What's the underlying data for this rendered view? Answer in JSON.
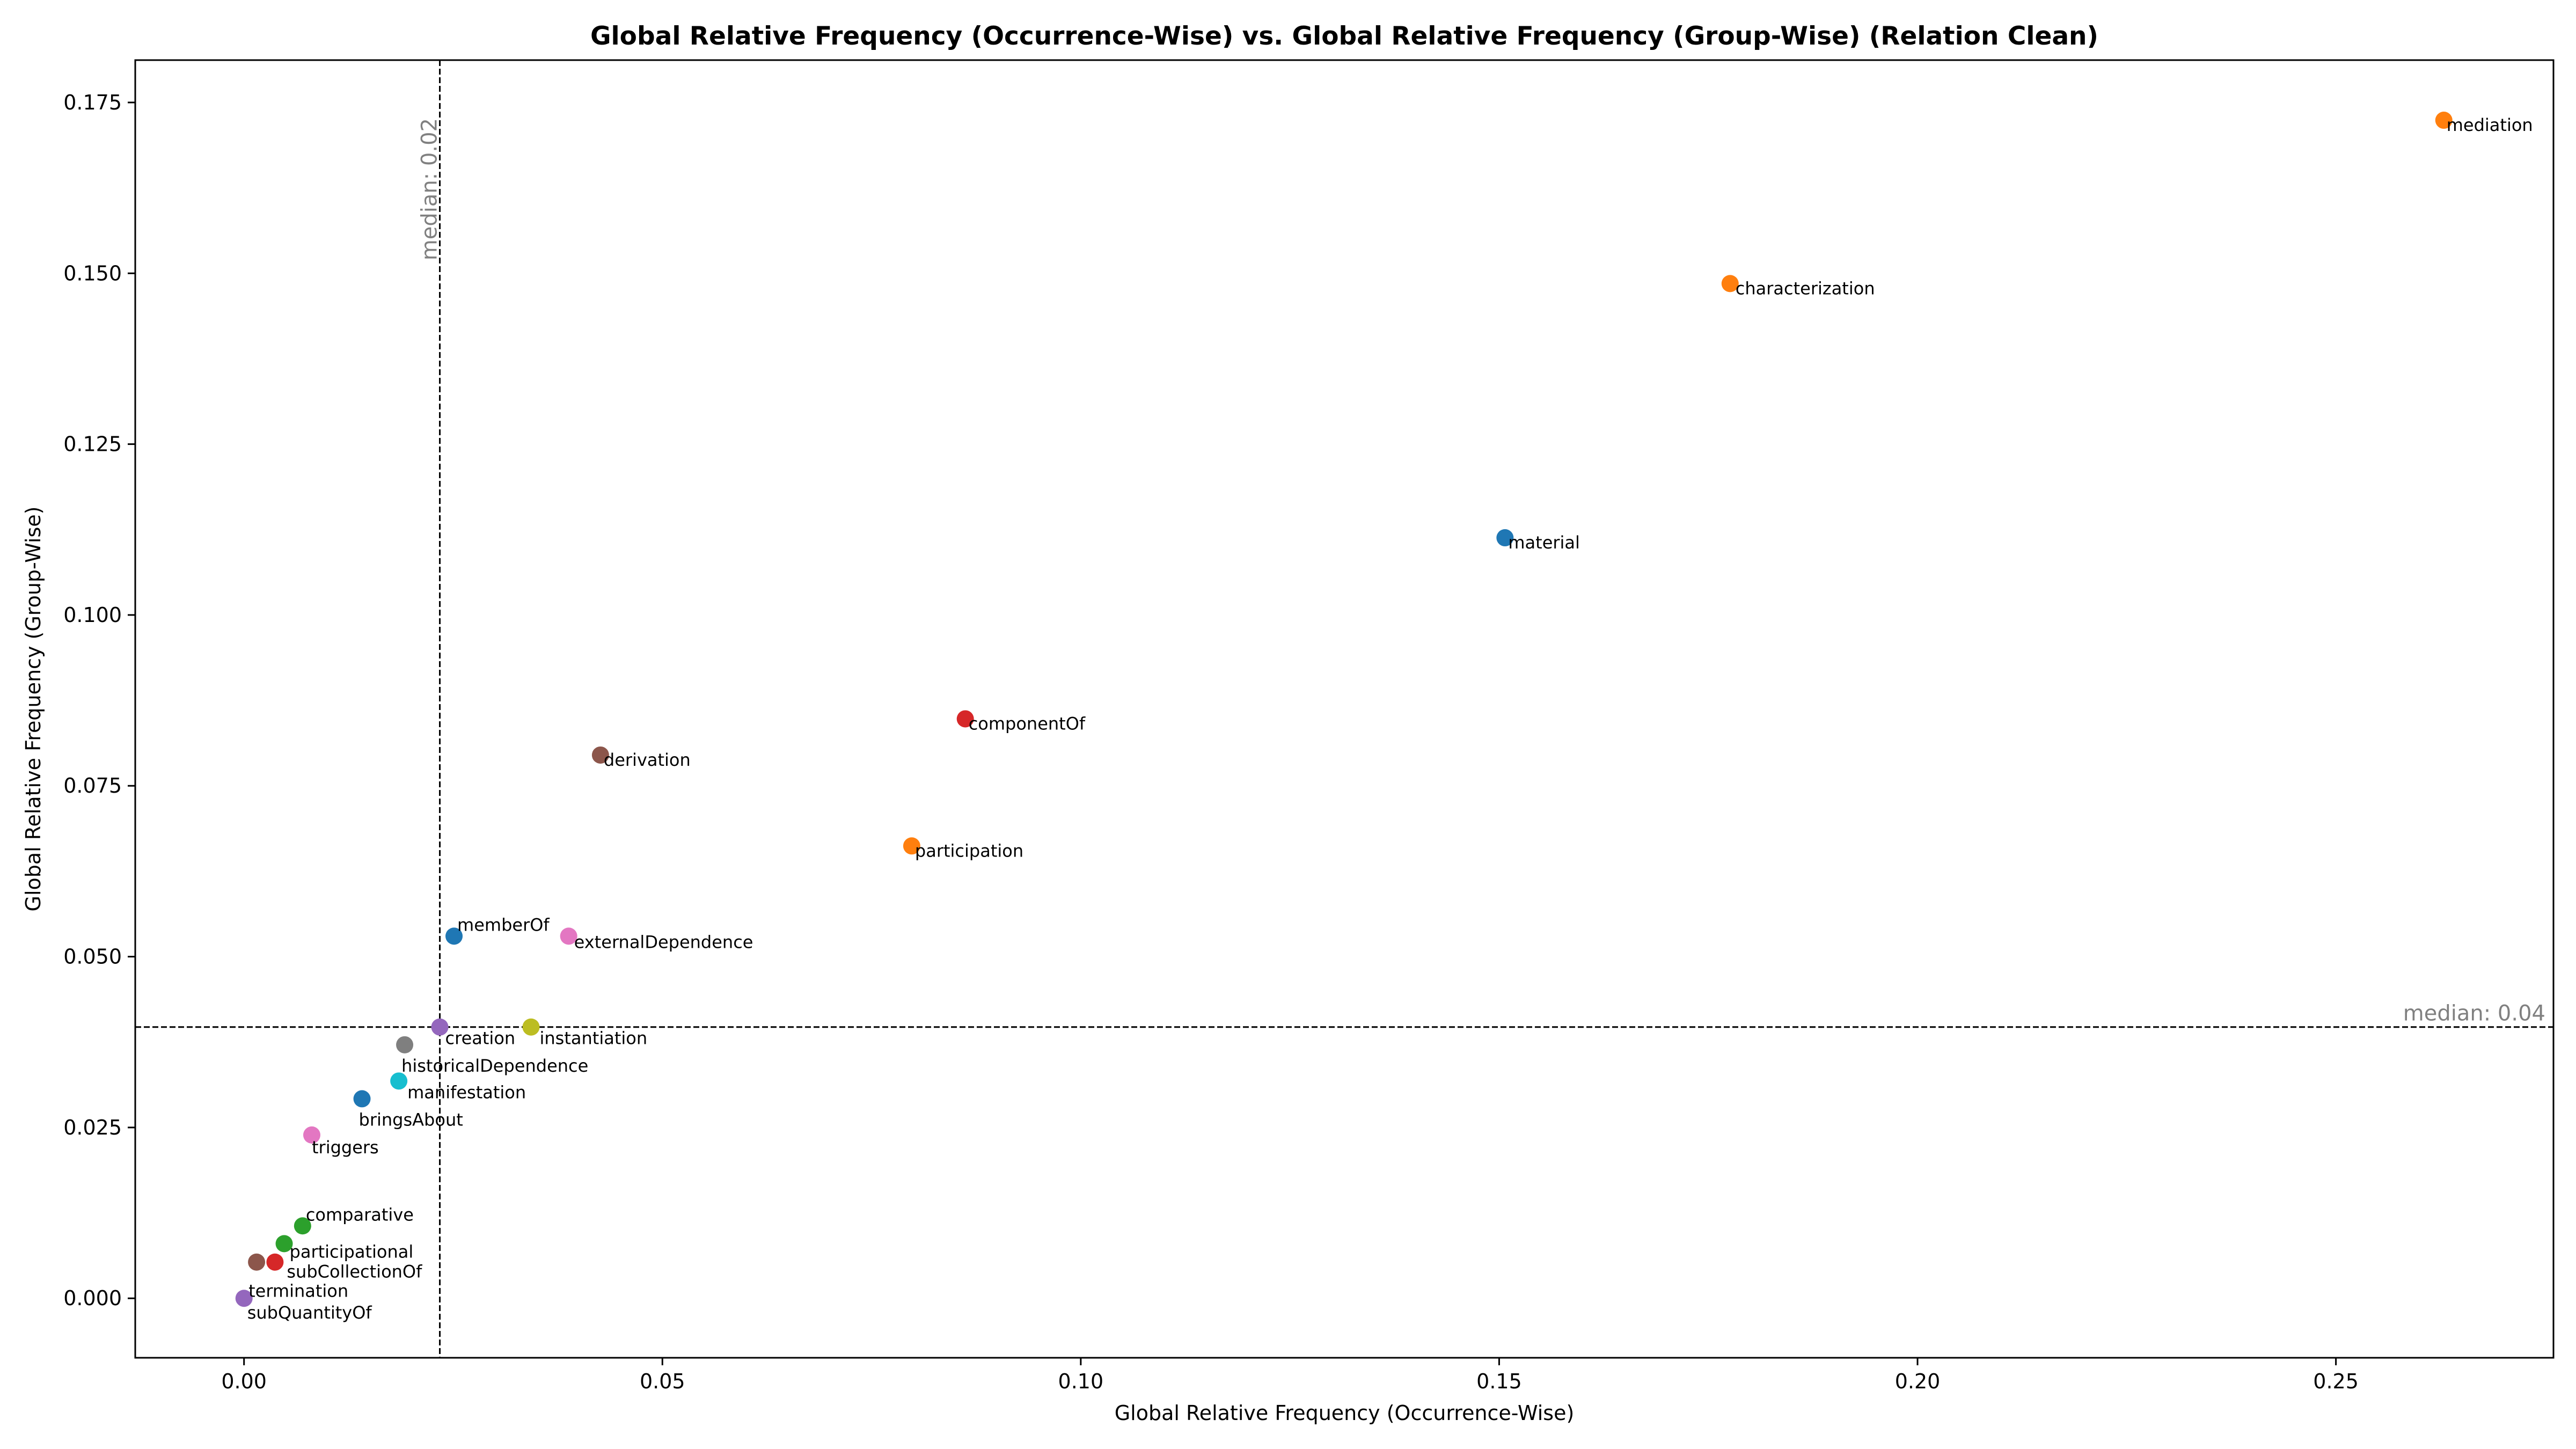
{
  "chart_data": {
    "type": "scatter",
    "title": "Global Relative Frequency (Occurrence-Wise) vs. Global Relative Frequency (Group-Wise) (Relation Clean)",
    "xlabel": "Global Relative Frequency (Occurrence-Wise)",
    "ylabel": "Global Relative Frequency (Group-Wise)",
    "xlim": [
      -0.013,
      0.276
    ],
    "ylim": [
      -0.0087,
      0.1812
    ],
    "xticks": [
      {
        "value": 0.0,
        "label": "0.00"
      },
      {
        "value": 0.05,
        "label": "0.05"
      },
      {
        "value": 0.1,
        "label": "0.10"
      },
      {
        "value": 0.15,
        "label": "0.15"
      },
      {
        "value": 0.2,
        "label": "0.20"
      },
      {
        "value": 0.25,
        "label": "0.25"
      }
    ],
    "yticks": [
      {
        "value": 0.0,
        "label": "0.000"
      },
      {
        "value": 0.025,
        "label": "0.025"
      },
      {
        "value": 0.05,
        "label": "0.050"
      },
      {
        "value": 0.075,
        "label": "0.075"
      },
      {
        "value": 0.1,
        "label": "0.100"
      },
      {
        "value": 0.125,
        "label": "0.125"
      },
      {
        "value": 0.15,
        "label": "0.150"
      },
      {
        "value": 0.175,
        "label": "0.175"
      }
    ],
    "grid": false,
    "median_x": {
      "value": 0.0234,
      "label": "median: 0.02"
    },
    "median_y": {
      "value": 0.0397,
      "label": "median: 0.04"
    },
    "points": [
      {
        "name": "mediation",
        "x": 0.2629,
        "y": 0.1724,
        "color": "#ff7f0e"
      },
      {
        "name": "characterization",
        "x": 0.1776,
        "y": 0.1485,
        "color": "#ff7f0e"
      },
      {
        "name": "material",
        "x": 0.1507,
        "y": 0.1113,
        "color": "#1f77b4"
      },
      {
        "name": "componentOf",
        "x": 0.0862,
        "y": 0.0848,
        "color": "#d62728"
      },
      {
        "name": "derivation",
        "x": 0.0426,
        "y": 0.0795,
        "color": "#8c564b"
      },
      {
        "name": "participation",
        "x": 0.0798,
        "y": 0.0662,
        "color": "#ff7f0e"
      },
      {
        "name": "memberOf",
        "x": 0.0251,
        "y": 0.053,
        "color": "#1f77b4"
      },
      {
        "name": "externalDependence",
        "x": 0.0388,
        "y": 0.053,
        "color": "#e377c2"
      },
      {
        "name": "creation",
        "x": 0.0234,
        "y": 0.0397,
        "color": "#9467bd"
      },
      {
        "name": "instantiation",
        "x": 0.0343,
        "y": 0.0397,
        "color": "#bcbd22"
      },
      {
        "name": "historicalDependence",
        "x": 0.0192,
        "y": 0.0371,
        "color": "#7f7f7f"
      },
      {
        "name": "manifestation",
        "x": 0.0185,
        "y": 0.0318,
        "color": "#17becf"
      },
      {
        "name": "bringsAbout",
        "x": 0.0141,
        "y": 0.0292,
        "color": "#1f77b4"
      },
      {
        "name": "triggers",
        "x": 0.0081,
        "y": 0.0239,
        "color": "#e377c2"
      },
      {
        "name": "comparative",
        "x": 0.007,
        "y": 0.0106,
        "color": "#2ca02c"
      },
      {
        "name": "participational",
        "x": 0.0048,
        "y": 0.008,
        "color": "#2ca02c"
      },
      {
        "name": "subCollectionOf",
        "x": 0.0037,
        "y": 0.0053,
        "color": "#d62728"
      },
      {
        "name": "termination",
        "x": 0.0015,
        "y": 0.0053,
        "color": "#8c564b"
      },
      {
        "name": "subQuantityOf",
        "x": 0.0,
        "y": 0.0,
        "color": "#9467bd"
      }
    ]
  }
}
